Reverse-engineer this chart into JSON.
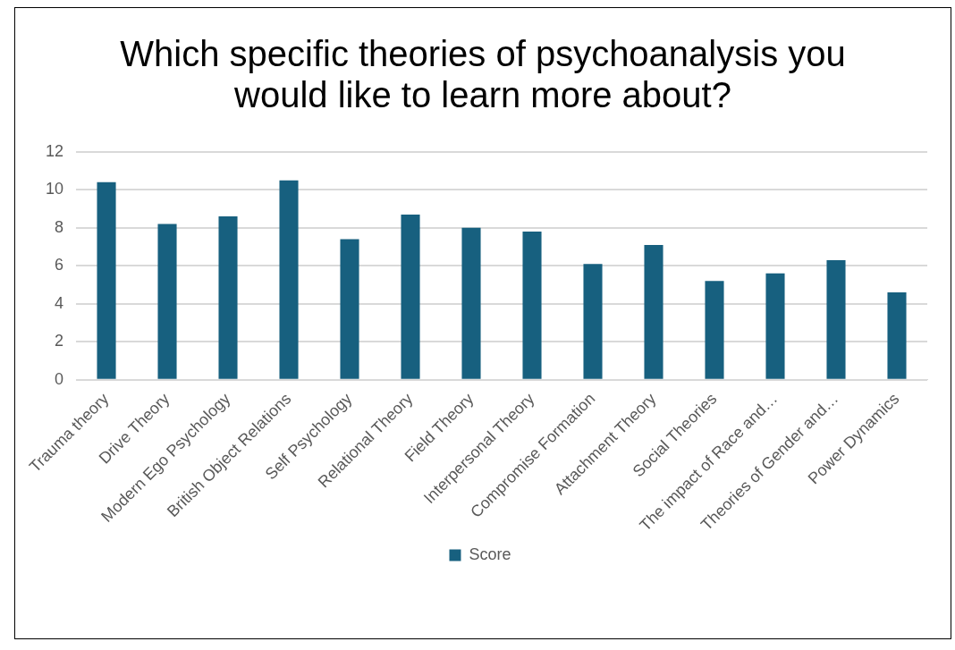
{
  "chart_data": {
    "type": "bar",
    "title": "Which specific theories of psychoanalysis you would like to learn more about?",
    "categories": [
      "Trauma theory",
      "Drive Theory",
      "Modern Ego Psychology",
      "British Object Relations",
      "Self Psychology",
      "Relational Theory",
      "Field Theory",
      "Interpersonal Theory",
      "Compromise Formation",
      "Attachment Theory",
      "Social Theories",
      "The impact of Race and…",
      "Theories of Gender and…",
      "Power Dynamics"
    ],
    "series": [
      {
        "name": "Score",
        "color": "#17607f",
        "values": [
          10.4,
          8.2,
          8.6,
          10.5,
          7.4,
          8.7,
          8.0,
          7.8,
          6.1,
          7.1,
          5.2,
          5.6,
          6.3,
          4.6
        ]
      }
    ],
    "ylim": [
      0,
      12
    ],
    "yticks": [
      0,
      2,
      4,
      6,
      8,
      10,
      12
    ],
    "grid": "y",
    "legend": "bottom"
  }
}
